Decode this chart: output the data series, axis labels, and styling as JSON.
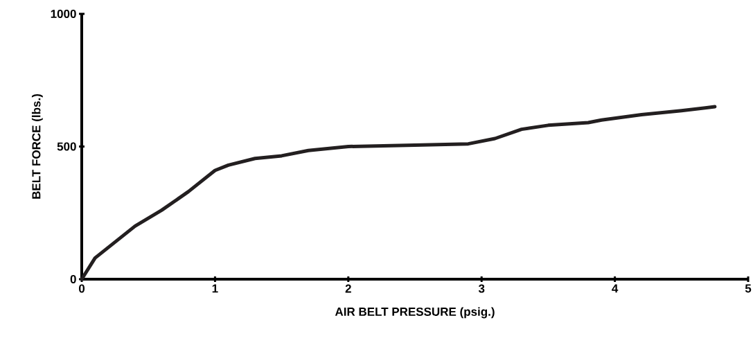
{
  "chart_data": {
    "type": "line",
    "xlabel": "AIR BELT PRESSURE (psig.)",
    "ylabel": "BELT FORCE (lbs.)",
    "x": [
      0,
      0.1,
      0.25,
      0.4,
      0.6,
      0.8,
      1.0,
      1.1,
      1.3,
      1.5,
      1.7,
      2.0,
      2.5,
      2.9,
      3.1,
      3.3,
      3.5,
      3.8,
      3.9,
      4.2,
      4.5,
      4.75
    ],
    "series": [
      {
        "color": "#231f20",
        "values": [
          0,
          80,
          140,
          200,
          260,
          330,
          410,
          430,
          455,
          465,
          485,
          500,
          505,
          510,
          530,
          565,
          580,
          590,
          600,
          620,
          635,
          650
        ]
      }
    ],
    "xlim": [
      0,
      5
    ],
    "ylim": [
      0,
      1000
    ],
    "xticks": [
      0,
      1,
      2,
      3,
      4,
      5
    ],
    "yticks": [
      0,
      500,
      1000
    ],
    "grid": false,
    "marker": "none",
    "line_style": "solid"
  }
}
